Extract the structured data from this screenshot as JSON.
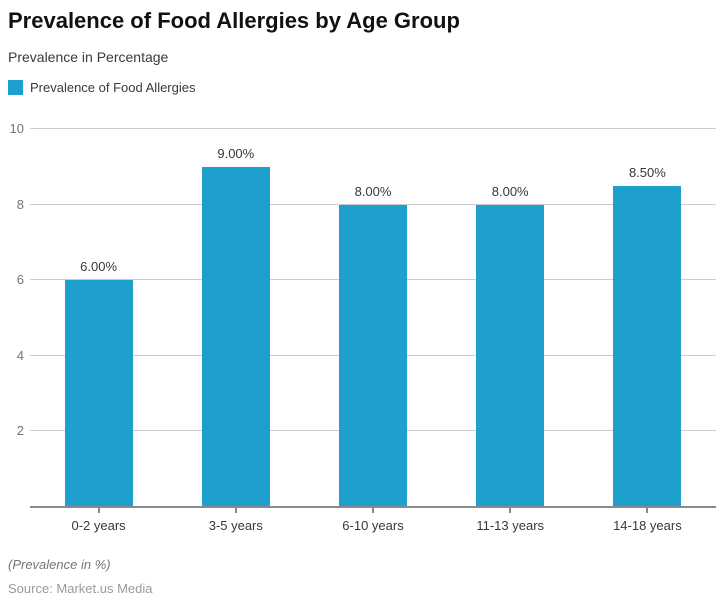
{
  "header": {
    "title": "Prevalence of Food Allergies by Age Group",
    "subtitle": "Prevalence in Percentage"
  },
  "legend": {
    "label": "Prevalence of Food Allergies"
  },
  "chart_data": {
    "type": "bar",
    "title": "Prevalence of Food Allergies by Age Group",
    "series_name": "Prevalence of Food Allergies",
    "categories": [
      "0-2 years",
      "3-5 years",
      "6-10 years",
      "11-13 years",
      "14-18 years"
    ],
    "values": [
      6,
      9,
      8,
      8,
      8.5
    ],
    "value_labels": [
      "6.00%",
      "9.00%",
      "8.00%",
      "8.00%",
      "8.50%"
    ],
    "ylabel": "Prevalence in Percentage",
    "ylim": [
      0,
      10
    ],
    "yticks": [
      2,
      4,
      6,
      8,
      10
    ],
    "grid": "horizontal",
    "legend_position": "top-left",
    "colors": {
      "bar": "#1da0ce",
      "gridline": "#cccccc",
      "axis": "#8a8a8a"
    }
  },
  "footer": {
    "note": "(Prevalence in %)",
    "source": "Source: Market.us Media"
  }
}
